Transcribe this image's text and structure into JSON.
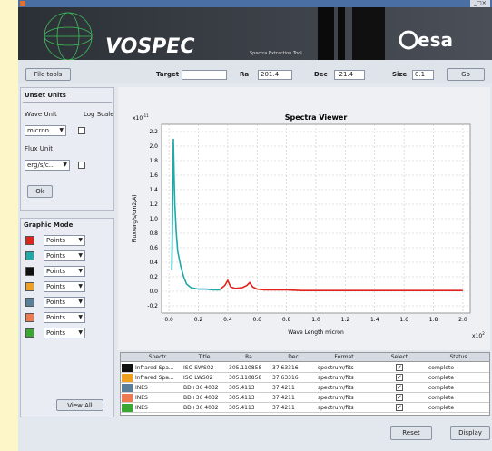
{
  "header": {
    "logo": "VOSPEC",
    "subtitle": "Spectra Extraction Tool",
    "agency": "esa"
  },
  "toolbar": {
    "file_button": "File tools",
    "target_label": "Target",
    "ra_label": "Ra",
    "ra_value": "201.4",
    "dec_label": "Dec",
    "dec_value": "-21.4",
    "size_label": "Size",
    "size_value": "0.1",
    "go_button": "Go"
  },
  "units_panel": {
    "title": "Unset Units",
    "wave_label": "Wave Unit",
    "log_label": "Log Scale",
    "wave_select": "micron",
    "flux_label": "Flux Unit",
    "flux_select": "erg/s/c...",
    "ok_button": "Ok"
  },
  "graphic_mode": {
    "title": "Graphic Mode",
    "rows": [
      {
        "color": "#e0231c",
        "mode": "Points"
      },
      {
        "color": "#1fa9a9",
        "mode": "Points"
      },
      {
        "color": "#111111",
        "mode": "Points"
      },
      {
        "color": "#f0a020",
        "mode": "Points"
      },
      {
        "color": "#5a7f9a",
        "mode": "Points"
      },
      {
        "color": "#f07a50",
        "mode": "Points"
      },
      {
        "color": "#3aa830",
        "mode": "Points"
      }
    ],
    "view_all": "View All"
  },
  "plot": {
    "title": "Spectra Viewer",
    "x_label": "Wave Length micron",
    "y_label": "Flux(erg/s/cm2/A)",
    "x_multiplier": {
      "base": "x10",
      "exp": "2"
    },
    "y_multiplier": {
      "base": "x10",
      "exp": "-11"
    },
    "xlim": [
      -0.05,
      2.05
    ],
    "ylim": [
      -0.3,
      2.3
    ],
    "xticks": [
      {
        "value": 0,
        "label": "0.0"
      },
      0.2,
      0.4,
      0.6,
      0.8,
      {
        "value": 1,
        "label": "1.0"
      },
      1.2,
      1.4,
      1.6,
      1.8,
      {
        "value": 2,
        "label": "2.0"
      }
    ],
    "yticks": [
      -0.2,
      {
        "value": 0,
        "label": "0.0"
      },
      0.2,
      0.4,
      0.6,
      0.8,
      {
        "value": 1,
        "label": "1.0"
      },
      1.2,
      1.4,
      1.6,
      1.8,
      {
        "value": 2,
        "label": "2.0"
      },
      2.2
    ],
    "grid": true,
    "series": [
      {
        "color": "#1fa9a9",
        "x": [
          0.02,
          0.03,
          0.035,
          0.04,
          0.05,
          0.06,
          0.08,
          0.1,
          0.12,
          0.15,
          0.2,
          0.25,
          0.3,
          0.35
        ],
        "values": [
          0.3,
          2.1,
          1.6,
          1.2,
          0.8,
          0.55,
          0.35,
          0.2,
          0.1,
          0.05,
          0.03,
          0.03,
          0.02,
          0.02
        ]
      },
      {
        "color": "#e0231c",
        "x": [
          0.35,
          0.38,
          0.4,
          0.42,
          0.45,
          0.5,
          0.53,
          0.55,
          0.57,
          0.6,
          0.65,
          0.7,
          0.8,
          0.9,
          1.0,
          1.1,
          1.2,
          1.3,
          1.4,
          1.5,
          1.6,
          1.7,
          1.8,
          1.9,
          2.0
        ],
        "values": [
          0.03,
          0.08,
          0.15,
          0.06,
          0.04,
          0.05,
          0.08,
          0.12,
          0.06,
          0.03,
          0.02,
          0.02,
          0.02,
          0.01,
          0.01,
          0.01,
          0.01,
          0.01,
          0.01,
          0.01,
          0.01,
          0.01,
          0.01,
          0.01,
          0.01
        ]
      }
    ]
  },
  "table": {
    "columns": [
      "Spectr",
      "Title",
      "Ra",
      "Dec",
      "Format",
      "Select",
      "Status"
    ],
    "rows": [
      {
        "color": "#111111",
        "selected": true,
        "cells": [
          "Infrared Spa...",
          "ISO SWS02",
          "305.110858",
          "37.63316",
          "spectrum/fits",
          "complete"
        ]
      },
      {
        "color": "#f0a020",
        "selected": true,
        "cells": [
          "Infrared Spa...",
          "ISO LWS02",
          "305.110858",
          "37.63316",
          "spectrum/fits",
          "complete"
        ]
      },
      {
        "color": "#5a7f9a",
        "selected": true,
        "cells": [
          "INES",
          "BD+36 4032",
          "305.4113",
          "37.4211",
          "spectrum/fits",
          "complete"
        ]
      },
      {
        "color": "#f07a50",
        "selected": true,
        "cells": [
          "INES",
          "BD+36 4032",
          "305.4113",
          "37.4211",
          "spectrum/fits",
          "complete"
        ]
      },
      {
        "color": "#3aa830",
        "selected": true,
        "cells": [
          "INES",
          "BD+36 4032",
          "305.4113",
          "37.4211",
          "spectrum/fits",
          "complete"
        ]
      }
    ]
  },
  "buttons": {
    "reset": "Reset",
    "display": "Display"
  }
}
